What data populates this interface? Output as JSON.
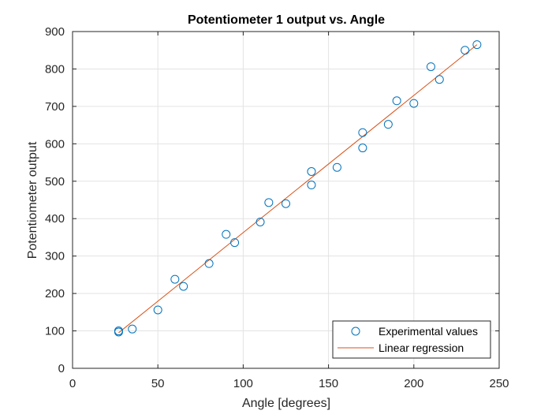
{
  "chart_data": {
    "type": "scatter",
    "title": "Potentiometer 1 output vs. Angle",
    "xlabel": "Angle [degrees]",
    "ylabel": "Potentiometer output",
    "xlim": [
      0,
      250
    ],
    "ylim": [
      0,
      900
    ],
    "xticks": [
      "0",
      "50",
      "100",
      "150",
      "200",
      "250"
    ],
    "yticks": [
      "0",
      "100",
      "200",
      "300",
      "400",
      "500",
      "600",
      "700",
      "800",
      "900"
    ],
    "grid": true,
    "legend_position": "bottom-right",
    "series": [
      {
        "name": "Experimental values",
        "kind": "scatter",
        "marker": "open-circle",
        "color": "#0072BD",
        "points": [
          [
            27,
            100
          ],
          [
            27,
            97
          ],
          [
            35,
            105
          ],
          [
            50,
            156
          ],
          [
            60,
            238
          ],
          [
            65,
            219
          ],
          [
            80,
            280
          ],
          [
            90,
            358
          ],
          [
            95,
            336
          ],
          [
            110,
            391
          ],
          [
            115,
            443
          ],
          [
            125,
            440
          ],
          [
            140,
            526
          ],
          [
            140,
            490
          ],
          [
            155,
            537
          ],
          [
            170,
            630
          ],
          [
            170,
            589
          ],
          [
            185,
            652
          ],
          [
            190,
            715
          ],
          [
            200,
            708
          ],
          [
            210,
            806
          ],
          [
            215,
            772
          ],
          [
            230,
            850
          ],
          [
            237,
            865
          ]
        ]
      },
      {
        "name": "Linear regression",
        "kind": "line",
        "color": "#D95319",
        "points": [
          [
            27,
            95
          ],
          [
            237,
            865
          ]
        ]
      }
    ]
  }
}
